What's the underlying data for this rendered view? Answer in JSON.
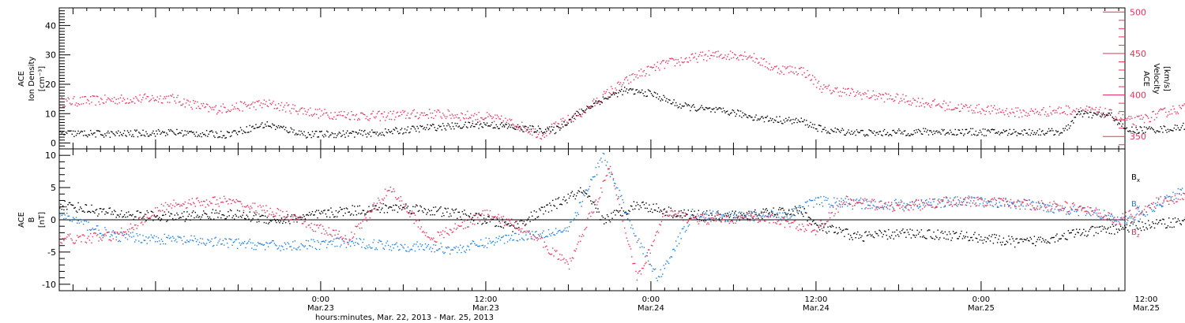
{
  "colors": {
    "black": "#000000",
    "red": "#e8325a",
    "blue": "#1f7fe0",
    "frame": "#000000"
  },
  "time": {
    "start": "2013-03-22 05:00",
    "end": "2013-03-25 12:00",
    "data_end": "2013-03-25 19:40",
    "x_title": "hours:minutes, Mar. 22, 2013 - Mar. 25, 2013",
    "ticks": [
      {
        "date": "2013-03-23 00:00",
        "time": "0:00",
        "day": "Mar.23"
      },
      {
        "date": "2013-03-23 12:00",
        "time": "12:00",
        "day": "Mar.23"
      },
      {
        "date": "2013-03-24 00:00",
        "time": "0:00",
        "day": "Mar.24"
      },
      {
        "date": "2013-03-24 12:00",
        "time": "12:00",
        "day": "Mar.24"
      },
      {
        "date": "2013-03-25 00:00",
        "time": "0:00",
        "day": "Mar.25"
      },
      {
        "date": "2013-03-25 12:00",
        "time": "12:00",
        "day": "Mar.25"
      }
    ]
  },
  "chart_data": [
    {
      "type": "scatter",
      "panel": "top",
      "left_axis": {
        "label_lines": [
          "ACE",
          "Ion Density",
          "[cm⁻³]"
        ],
        "ylim": [
          -2,
          46
        ],
        "tick_values": [
          0,
          10,
          20,
          30,
          40
        ],
        "tick_labels": [
          "0",
          "10",
          "20",
          "30",
          "40"
        ],
        "color": "#000000"
      },
      "right_axis": {
        "label_lines": [
          "ACE",
          "Velocity",
          "[km/s]"
        ],
        "ylim": [
          335,
          505
        ],
        "tick_values": [
          350,
          400,
          450,
          500
        ],
        "tick_labels": [
          "350",
          "400",
          "450",
          "500"
        ],
        "color": "#e8325a"
      },
      "series": [
        {
          "axis": "left",
          "color": "#000000",
          "points": [
            [
              "2013-03-22 05:00",
              3.5
            ],
            [
              "2013-03-22 09:00",
              3.2
            ],
            [
              "2013-03-22 13:00",
              3.8
            ],
            [
              "2013-03-22 17:00",
              3.0
            ],
            [
              "2013-03-22 20:00",
              6.5
            ],
            [
              "2013-03-22 23:00",
              3.0
            ],
            [
              "2013-03-23 04:00",
              3.5
            ],
            [
              "2013-03-23 08:00",
              5.5
            ],
            [
              "2013-03-23 12:00",
              6.5
            ],
            [
              "2013-03-23 15:00",
              5.0
            ],
            [
              "2013-03-23 17:00",
              4.5
            ],
            [
              "2013-03-23 18:30",
              9.5
            ],
            [
              "2013-03-23 20:00",
              14.0
            ],
            [
              "2013-03-23 22:00",
              18.0
            ],
            [
              "2013-03-24 00:00",
              17.0
            ],
            [
              "2013-03-24 02:00",
              13.0
            ],
            [
              "2013-03-24 04:00",
              11.5
            ],
            [
              "2013-03-24 06:00",
              10.5
            ],
            [
              "2013-03-24 08:00",
              8.5
            ],
            [
              "2013-03-24 11:00",
              7.5
            ],
            [
              "2013-03-24 12:30",
              4.5
            ],
            [
              "2013-03-24 16:00",
              3.5
            ],
            [
              "2013-03-24 20:00",
              4.0
            ],
            [
              "2013-03-25 02:00",
              3.8
            ],
            [
              "2013-03-25 06:00",
              4.0
            ],
            [
              "2013-03-25 07:00",
              10.0
            ],
            [
              "2013-03-25 09:30",
              9.5
            ],
            [
              "2013-03-25 10:30",
              4.5
            ],
            [
              "2013-03-25 14:00",
              5.0
            ],
            [
              "2013-03-25 17:00",
              9.0
            ],
            [
              "2013-03-25 19:40",
              8.5
            ]
          ]
        },
        {
          "axis": "right",
          "color": "#e8325a",
          "points": [
            [
              "2013-03-22 05:00",
              392
            ],
            [
              "2013-03-22 09:00",
              395
            ],
            [
              "2013-03-22 13:00",
              397
            ],
            [
              "2013-03-22 16:00",
              383
            ],
            [
              "2013-03-22 20:00",
              390
            ],
            [
              "2013-03-23 00:00",
              378
            ],
            [
              "2013-03-23 04:00",
              375
            ],
            [
              "2013-03-23 08:00",
              378
            ],
            [
              "2013-03-23 12:00",
              374
            ],
            [
              "2013-03-23 14:00",
              366
            ],
            [
              "2013-03-23 16:00",
              353
            ],
            [
              "2013-03-23 17:00",
              362
            ],
            [
              "2013-03-23 19:00",
              380
            ],
            [
              "2013-03-23 21:00",
              405
            ],
            [
              "2013-03-23 23:00",
              425
            ],
            [
              "2013-03-24 01:00",
              438
            ],
            [
              "2013-03-24 04:00",
              448
            ],
            [
              "2013-03-24 07:00",
              449
            ],
            [
              "2013-03-24 09:00",
              432
            ],
            [
              "2013-03-24 11:00",
              430
            ],
            [
              "2013-03-24 12:30",
              408
            ],
            [
              "2013-03-24 15:00",
              402
            ],
            [
              "2013-03-24 18:00",
              396
            ],
            [
              "2013-03-24 22:00",
              386
            ],
            [
              "2013-03-25 03:00",
              379
            ],
            [
              "2013-03-25 07:00",
              383
            ],
            [
              "2013-03-25 09:00",
              379
            ],
            [
              "2013-03-25 11:00",
              368
            ],
            [
              "2013-03-25 14:00",
              383
            ],
            [
              "2013-03-25 17:00",
              388
            ],
            [
              "2013-03-25 19:40",
              378
            ]
          ]
        }
      ]
    },
    {
      "type": "scatter",
      "panel": "bottom",
      "left_axis": {
        "label_lines": [
          "ACE",
          "B",
          "[nT]"
        ],
        "ylim": [
          -11,
          11
        ],
        "tick_values": [
          -10,
          -5,
          0,
          5,
          10
        ],
        "tick_labels": [
          "-10",
          "-5",
          "0",
          "5",
          "10"
        ],
        "zero_line": true,
        "color": "#000000"
      },
      "legend_position": "right",
      "series": [
        {
          "name": "Bx",
          "legend": {
            "base": "B",
            "sub": "x"
          },
          "color": "#000000",
          "points": [
            [
              "2013-03-22 05:00",
              2.5
            ],
            [
              "2013-03-22 09:00",
              1.0
            ],
            [
              "2013-03-22 13:00",
              0.5
            ],
            [
              "2013-03-22 17:00",
              1.0
            ],
            [
              "2013-03-22 21:00",
              0.0
            ],
            [
              "2013-03-23 02:00",
              1.5
            ],
            [
              "2013-03-23 06:00",
              2.0
            ],
            [
              "2013-03-23 10:00",
              1.0
            ],
            [
              "2013-03-23 14:00",
              -1.0
            ],
            [
              "2013-03-23 17:00",
              2.5
            ],
            [
              "2013-03-23 19:00",
              4.5
            ],
            [
              "2013-03-23 20:30",
              0.0
            ],
            [
              "2013-03-23 23:00",
              2.5
            ],
            [
              "2013-03-24 02:00",
              1.0
            ],
            [
              "2013-03-24 05:00",
              0.5
            ],
            [
              "2013-03-24 08:00",
              1.0
            ],
            [
              "2013-03-24 11:00",
              1.5
            ],
            [
              "2013-03-24 12:00",
              -1.0
            ],
            [
              "2013-03-24 15:00",
              -2.5
            ],
            [
              "2013-03-24 19:00",
              -2.0
            ],
            [
              "2013-03-24 23:00",
              -2.5
            ],
            [
              "2013-03-25 03:00",
              -3.5
            ],
            [
              "2013-03-25 07:00",
              -2.0
            ],
            [
              "2013-03-25 11:00",
              -1.0
            ],
            [
              "2013-03-25 15:00",
              0.0
            ],
            [
              "2013-03-25 18:00",
              0.5
            ],
            [
              "2013-03-25 19:40",
              -4.0
            ]
          ]
        },
        {
          "name": "By",
          "legend": {
            "base": "B",
            "sub": "y"
          },
          "color": "#1f7fe0",
          "points": [
            [
              "2013-03-22 05:00",
              1.0
            ],
            [
              "2013-03-22 09:00",
              -2.5
            ],
            [
              "2013-03-22 13:00",
              -3.0
            ],
            [
              "2013-03-22 17:00",
              -3.5
            ],
            [
              "2013-03-22 21:00",
              -4.0
            ],
            [
              "2013-03-23 02:00",
              -3.5
            ],
            [
              "2013-03-23 06:00",
              -4.0
            ],
            [
              "2013-03-23 10:00",
              -4.5
            ],
            [
              "2013-03-23 14:00",
              -2.5
            ],
            [
              "2013-03-23 18:00",
              -1.5
            ],
            [
              "2013-03-23 20:30",
              10.0
            ],
            [
              "2013-03-23 23:00",
              -3.0
            ],
            [
              "2013-03-24 00:30",
              -9.0
            ],
            [
              "2013-03-24 03:00",
              1.0
            ],
            [
              "2013-03-24 06:00",
              0.5
            ],
            [
              "2013-03-24 10:00",
              1.0
            ],
            [
              "2013-03-24 12:00",
              3.0
            ],
            [
              "2013-03-24 15:00",
              2.5
            ],
            [
              "2013-03-24 19:00",
              2.5
            ],
            [
              "2013-03-24 23:00",
              3.0
            ],
            [
              "2013-03-25 03:00",
              2.5
            ],
            [
              "2013-03-25 07:00",
              1.5
            ],
            [
              "2013-03-25 11:00",
              0.0
            ],
            [
              "2013-03-25 14:00",
              4.0
            ],
            [
              "2013-03-25 17:00",
              6.0
            ],
            [
              "2013-03-25 19:40",
              -5.0
            ]
          ]
        },
        {
          "name": "Bz",
          "legend": {
            "base": "B",
            "sub": "z"
          },
          "color": "#e8325a",
          "points": [
            [
              "2013-03-22 05:00",
              -3.0
            ],
            [
              "2013-03-22 09:00",
              -2.5
            ],
            [
              "2013-03-22 13:00",
              2.5
            ],
            [
              "2013-03-22 17:00",
              3.0
            ],
            [
              "2013-03-22 21:00",
              1.0
            ],
            [
              "2013-03-23 02:00",
              -3.0
            ],
            [
              "2013-03-23 05:00",
              5.0
            ],
            [
              "2013-03-23 08:00",
              -3.0
            ],
            [
              "2013-03-23 12:00",
              1.0
            ],
            [
              "2013-03-23 15:00",
              -1.5
            ],
            [
              "2013-03-23 18:00",
              -7.0
            ],
            [
              "2013-03-23 21:00",
              8.0
            ],
            [
              "2013-03-23 23:00",
              -9.0
            ],
            [
              "2013-03-24 01:00",
              1.0
            ],
            [
              "2013-03-24 04:00",
              0.0
            ],
            [
              "2013-03-24 08:00",
              0.5
            ],
            [
              "2013-03-24 12:00",
              -1.5
            ],
            [
              "2013-03-24 14:00",
              3.0
            ],
            [
              "2013-03-24 18:00",
              2.0
            ],
            [
              "2013-03-24 22:00",
              3.0
            ],
            [
              "2013-03-25 03:00",
              2.5
            ],
            [
              "2013-03-25 07:00",
              2.0
            ],
            [
              "2013-03-25 10:00",
              0.0
            ],
            [
              "2013-03-25 13:00",
              3.0
            ],
            [
              "2013-03-25 16:00",
              4.0
            ],
            [
              "2013-03-25 19:40",
              7.5
            ]
          ]
        }
      ]
    }
  ]
}
